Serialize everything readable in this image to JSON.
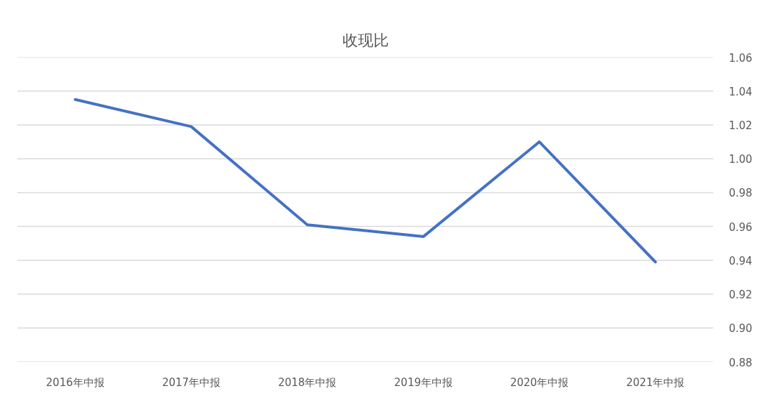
{
  "chart_data": {
    "type": "line",
    "title": "收现比",
    "categories": [
      "2016年中报",
      "2017年中报",
      "2018年中报",
      "2019年中报",
      "2020年中报",
      "2021年中报"
    ],
    "series": [
      {
        "color": "#4472c4",
        "values": [
          1.035,
          1.019,
          0.961,
          0.954,
          1.01,
          0.939
        ]
      }
    ],
    "ylim": [
      0.88,
      1.06
    ],
    "yticks": [
      0.88,
      {
        "value": 0.9,
        "label": "0.90"
      },
      0.92,
      0.94,
      0.96,
      0.98,
      {
        "value": 1.0,
        "label": "1.00"
      },
      1.02,
      1.04,
      1.06
    ],
    "grid": "y"
  }
}
